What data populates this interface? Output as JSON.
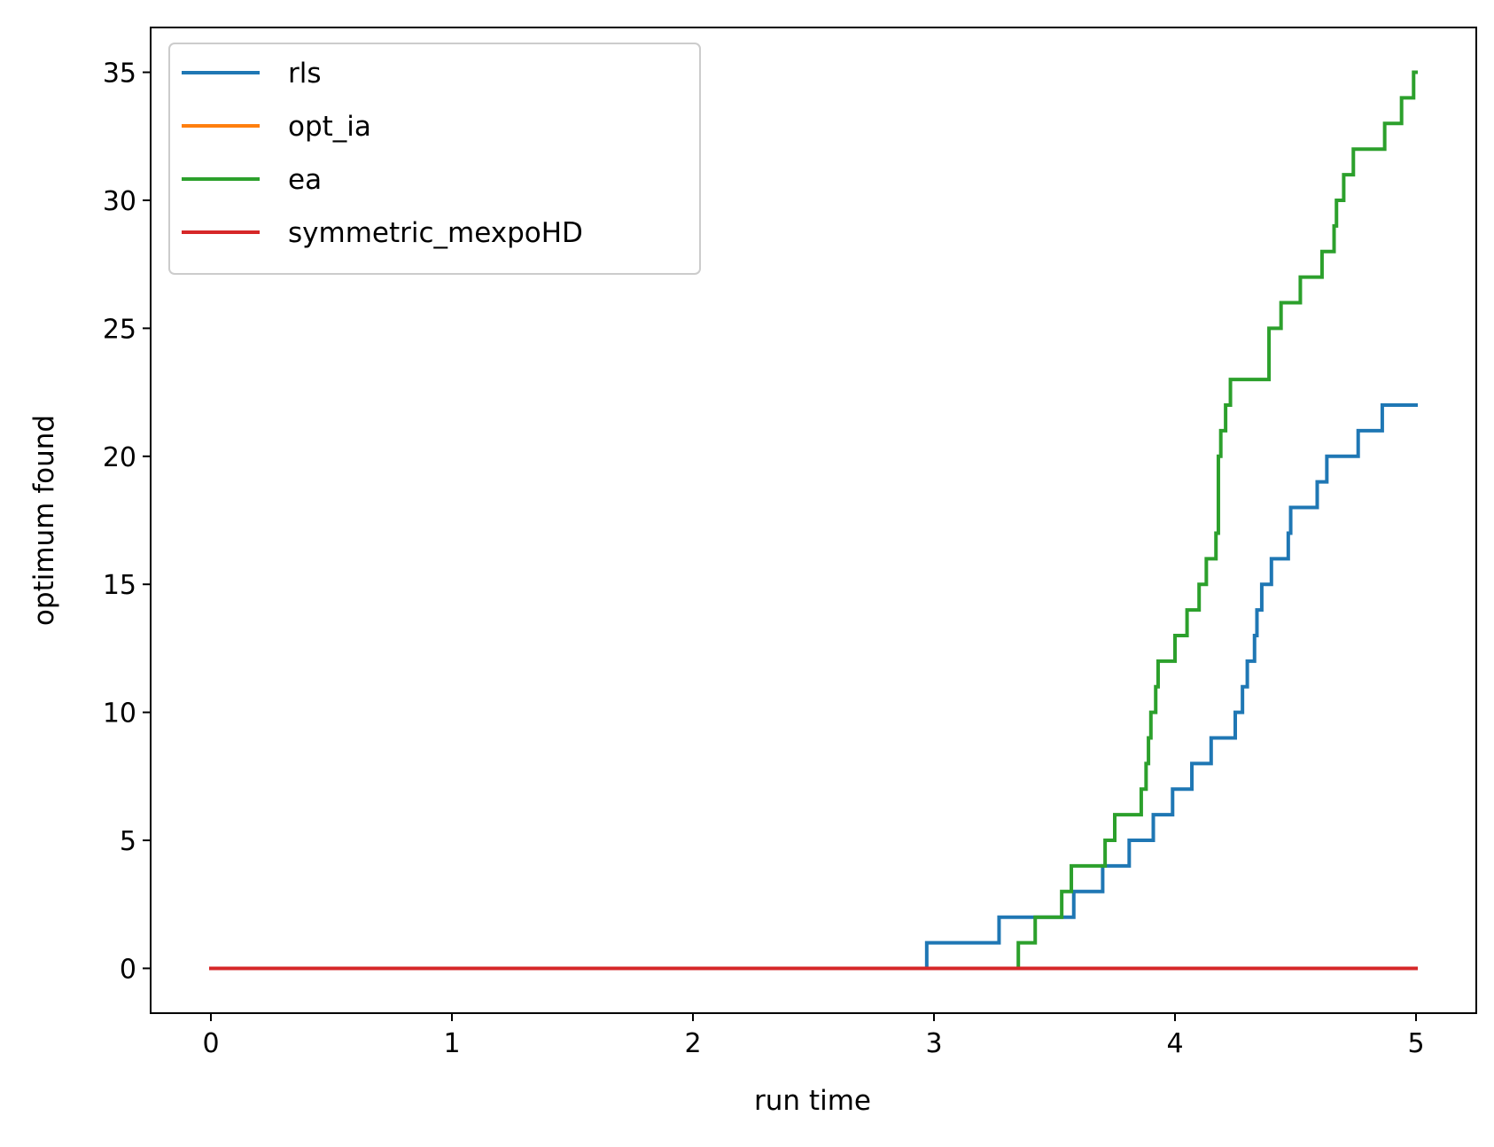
{
  "chart_data": {
    "type": "line",
    "step": true,
    "xlabel": "run time",
    "ylabel": "optimum found",
    "xlim": [
      -0.25,
      5.25
    ],
    "ylim": [
      -1.75,
      36.75
    ],
    "xticks": [
      0,
      1,
      2,
      3,
      4,
      5
    ],
    "xtick_labels": [
      "0",
      "1",
      "2",
      "3",
      "4",
      "5"
    ],
    "yticks": [
      0,
      5,
      10,
      15,
      20,
      25,
      30,
      35
    ],
    "ytick_labels": [
      "0",
      "5",
      "10",
      "15",
      "20",
      "25",
      "30",
      "35"
    ],
    "grid": false,
    "legend_position": "top-left",
    "series": [
      {
        "name": "rls",
        "color": "#1f77b4",
        "x": [
          0,
          2.97,
          3.27,
          3.58,
          3.7,
          3.81,
          3.91,
          3.99,
          4.07,
          4.15,
          4.25,
          4.28,
          4.3,
          4.33,
          4.34,
          4.36,
          4.4,
          4.47,
          4.48,
          4.59,
          4.63,
          4.76,
          4.86,
          5.0
        ],
        "y": [
          0,
          1,
          2,
          3,
          4,
          5,
          6,
          7,
          8,
          9,
          10,
          11,
          12,
          13,
          14,
          15,
          16,
          17,
          18,
          19,
          20,
          21,
          22,
          22
        ]
      },
      {
        "name": "opt_ia",
        "color": "#ff7f0e",
        "x": [
          0,
          5.0
        ],
        "y": [
          0,
          0
        ]
      },
      {
        "name": "ea",
        "color": "#2ca02c",
        "x": [
          0,
          3.35,
          3.42,
          3.53,
          3.57,
          3.71,
          3.75,
          3.86,
          3.88,
          3.89,
          3.9,
          3.92,
          3.93,
          3.94,
          4.0,
          4.05,
          4.1,
          4.13,
          4.17,
          4.18,
          4.19,
          4.21,
          4.23,
          4.28,
          4.39,
          4.4,
          4.44,
          4.52,
          4.61,
          4.66,
          4.67,
          4.7,
          4.74,
          4.87,
          4.94,
          4.99,
          5.0
        ],
        "y": [
          0,
          1,
          2,
          3,
          4,
          5,
          6,
          7,
          8,
          9,
          10,
          11,
          12,
          12,
          13,
          14,
          15,
          16,
          17,
          20,
          21,
          22,
          23,
          23,
          25,
          25,
          26,
          27,
          28,
          29,
          30,
          31,
          32,
          33,
          34,
          35,
          35
        ]
      },
      {
        "name": "symmetric_mexpoHD",
        "color": "#d62728",
        "x": [
          0,
          5.0
        ],
        "y": [
          0,
          0
        ]
      }
    ]
  }
}
